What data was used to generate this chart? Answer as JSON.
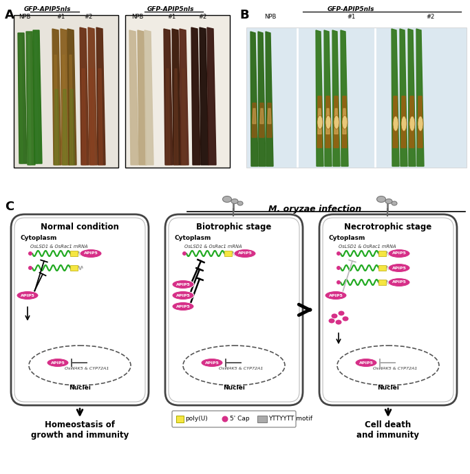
{
  "fig_width": 6.83,
  "fig_height": 6.9,
  "bg_color": "#ffffff",
  "panel_A_label": "A",
  "panel_B_label": "B",
  "panel_C_label": "C",
  "panel_A_title1": "GFP-APIP5nls",
  "panel_A_title2": "GFP-APIP5nls",
  "panel_B_title": "GFP-APIP5nls",
  "panel_B_labels": [
    "NPB",
    "#1",
    "#2"
  ],
  "m_oryzae_title": "M. oryzae infection",
  "normal_title": "Normal condition",
  "biotrophic_title": "Biotrophic stage",
  "necrotrophic_title": "Necrotrophic stage",
  "cytoplasm_label": "Cytoplasm",
  "mrna_label": "OsLSD1 & OsRac1 mRNA",
  "nuclei_label": "Nuclei",
  "oswak_label": "OsWAK5 & CYP72A1",
  "apip5_label": "APIP5",
  "homeostasis_label": "Homeostasis of\ngrowth and immunity",
  "cell_death_label": "Cell death\nand immunity",
  "legend_items": [
    "poly(U)",
    "5' Cap",
    "YTTYYTT motif"
  ],
  "apip5_color": "#d63088",
  "mrna_color": "#22aa22",
  "poly_u_color": "#f5e642",
  "motif_color": "#aaaaaa",
  "cap_color": "#d63088",
  "cell_border_color": "#555555",
  "arrow_color": "#000000"
}
